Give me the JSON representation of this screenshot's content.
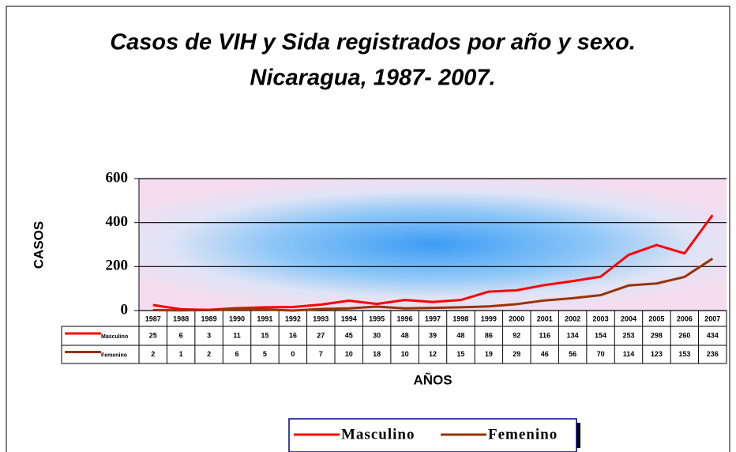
{
  "chart_data": {
    "type": "line",
    "title": [
      "Casos de VIH y Sida registrados por año y sexo.",
      "Nicaragua, 1987- 2007."
    ],
    "ylabel": "CASOS",
    "xlabel": "AÑOS",
    "categories": [
      "1987",
      "1988",
      "1989",
      "1990",
      "1991",
      "1992",
      "1993",
      "1994",
      "1995",
      "1996",
      "1997",
      "1998",
      "1999",
      "2000",
      "2001",
      "2002",
      "2003",
      "2004",
      "2005",
      "2006",
      "2007"
    ],
    "series": [
      {
        "name": "Masculino",
        "color": "#ff0000",
        "values": [
          25,
          6,
          3,
          11,
          15,
          16,
          27,
          45,
          30,
          48,
          39,
          48,
          86,
          92,
          116,
          134,
          154,
          253,
          298,
          260,
          434
        ]
      },
      {
        "name": "Femenino",
        "color": "#993300",
        "values": [
          2,
          1,
          2,
          6,
          5,
          0,
          7,
          10,
          18,
          10,
          12,
          15,
          19,
          29,
          46,
          56,
          70,
          114,
          123,
          153,
          236
        ]
      }
    ],
    "ylim": [
      0,
      600
    ],
    "yticks": [
      0,
      200,
      400,
      600
    ],
    "grid": true,
    "legend": "bottom"
  }
}
